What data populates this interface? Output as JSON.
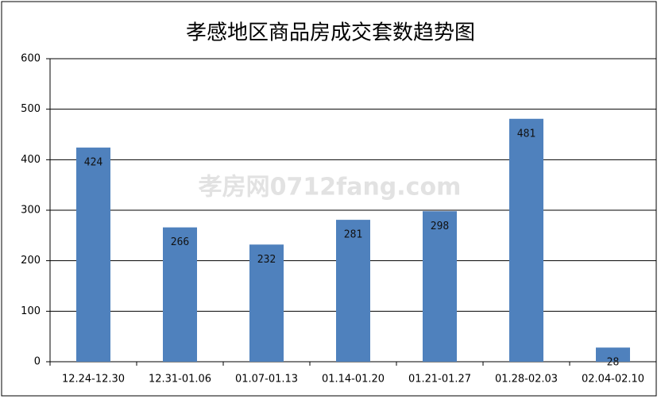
{
  "chart_data": {
    "type": "bar",
    "title": "孝感地区商品房成交套数趋势图",
    "categories": [
      "12.24-12.30",
      "12.31-01.06",
      "01.07-01.13",
      "01.14-01.20",
      "01.21-01.27",
      "01.28-02.03",
      "02.04-02.10"
    ],
    "values": [
      424,
      266,
      232,
      281,
      298,
      481,
      28
    ],
    "color": "#4f81bd",
    "ylim": [
      0,
      600
    ],
    "yticks": [
      0,
      100,
      200,
      300,
      400,
      500,
      600
    ],
    "grid": true,
    "watermark": "孝房网0712fang.com"
  }
}
